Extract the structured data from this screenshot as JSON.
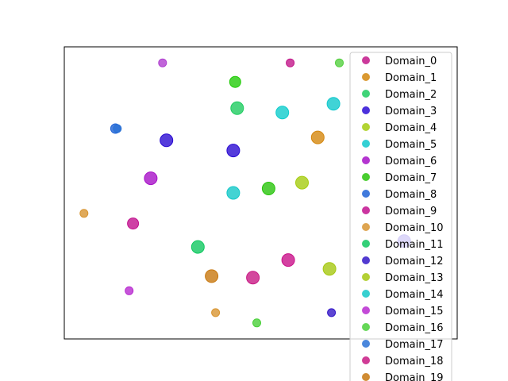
{
  "chart_data": {
    "type": "scatter",
    "title": "",
    "xlabel": "",
    "ylabel": "",
    "xlim": [
      0,
      100
    ],
    "ylim": [
      0,
      100
    ],
    "axis_ticks": false,
    "grid": false,
    "legend_position": "right",
    "series": [
      {
        "name": "Domain_0",
        "color": "#c2188a",
        "points": [
          {
            "x": 57.5,
            "y": 94.5,
            "r": 5
          }
        ]
      },
      {
        "name": "Domain_1",
        "color": "#d4870e",
        "points": [
          {
            "x": 64.5,
            "y": 69,
            "r": 8
          }
        ]
      },
      {
        "name": "Domain_2",
        "color": "#1fcc60",
        "points": [
          {
            "x": 44,
            "y": 79,
            "r": 8
          }
        ]
      },
      {
        "name": "Domain_3",
        "color": "#2d0dd6",
        "points": [
          {
            "x": 86.5,
            "y": 33.5,
            "r": 8
          }
        ]
      },
      {
        "name": "Domain_4",
        "color": "#a5cc10",
        "points": [
          {
            "x": 60.5,
            "y": 53.5,
            "r": 8
          }
        ]
      },
      {
        "name": "Domain_5",
        "color": "#10c8cc",
        "points": [
          {
            "x": 68.5,
            "y": 80.5,
            "r": 8
          }
        ]
      },
      {
        "name": "Domain_6",
        "color": "#a712c8",
        "points": [
          {
            "x": 22,
            "y": 55,
            "r": 8
          }
        ]
      },
      {
        "name": "Domain_7",
        "color": "#29c40c",
        "points": [
          {
            "x": 52,
            "y": 51.5,
            "r": 8
          }
        ]
      },
      {
        "name": "Domain_8",
        "color": "#1f63d6",
        "points": [
          {
            "x": 13,
            "y": 72,
            "r": 6
          }
        ]
      },
      {
        "name": "Domain_9",
        "color": "#c2128f",
        "points": [
          {
            "x": 17.5,
            "y": 39.5,
            "r": 7
          }
        ]
      },
      {
        "name": "Domain_10",
        "color": "#d89532",
        "points": [
          {
            "x": 5,
            "y": 43,
            "r": 5
          }
        ]
      },
      {
        "name": "Domain_11",
        "color": "#10c860",
        "points": [
          {
            "x": 34,
            "y": 31.5,
            "r": 8
          }
        ]
      },
      {
        "name": "Domain_12",
        "color": "#3418c8",
        "points": [
          {
            "x": 68,
            "y": 9,
            "r": 5
          }
        ]
      },
      {
        "name": "Domain_13",
        "color": "#a6c812",
        "points": [
          {
            "x": 67.5,
            "y": 24,
            "r": 8
          }
        ]
      },
      {
        "name": "Domain_14",
        "color": "#14c8c8",
        "points": [
          {
            "x": 43,
            "y": 50,
            "r": 8
          }
        ]
      },
      {
        "name": "Domain_15",
        "color": "#b82ad0",
        "points": [
          {
            "x": 16.5,
            "y": 16.5,
            "r": 5
          }
        ]
      },
      {
        "name": "Domain_16",
        "color": "#4ad03a",
        "points": [
          {
            "x": 49,
            "y": 5.5,
            "r": 5
          }
        ]
      },
      {
        "name": "Domain_17",
        "color": "#2a72d6",
        "points": [
          {
            "x": 13.5,
            "y": 72,
            "r": 5
          }
        ]
      },
      {
        "name": "Domain_18",
        "color": "#c81a84",
        "points": [
          {
            "x": 48,
            "y": 21,
            "r": 8
          }
        ]
      },
      {
        "name": "Domain_19",
        "color": "#c8780f",
        "points": [
          {
            "x": 37.5,
            "y": 21.5,
            "r": 8
          }
        ]
      },
      {
        "name": "",
        "color": "#2a0bd2",
        "points": [
          {
            "x": 26,
            "y": 68,
            "r": 8
          },
          {
            "x": 43,
            "y": 64.5,
            "r": 8
          }
        ]
      },
      {
        "name": "",
        "color": "#23cc0a",
        "points": [
          {
            "x": 43.5,
            "y": 88,
            "r": 7
          }
        ]
      },
      {
        "name": "",
        "color": "#b03fd0",
        "points": [
          {
            "x": 25,
            "y": 94.5,
            "r": 5
          }
        ]
      },
      {
        "name": "",
        "color": "#55d040",
        "points": [
          {
            "x": 70,
            "y": 94.5,
            "r": 5
          }
        ]
      },
      {
        "name": "",
        "color": "#c9128a",
        "points": [
          {
            "x": 57,
            "y": 27,
            "r": 8
          }
        ]
      },
      {
        "name": "",
        "color": "#d89532",
        "points": [
          {
            "x": 38.5,
            "y": 9,
            "r": 5
          }
        ]
      },
      {
        "name": "",
        "color": "#0fcccc",
        "points": [
          {
            "x": 55.5,
            "y": 77.5,
            "r": 8
          }
        ]
      }
    ]
  }
}
